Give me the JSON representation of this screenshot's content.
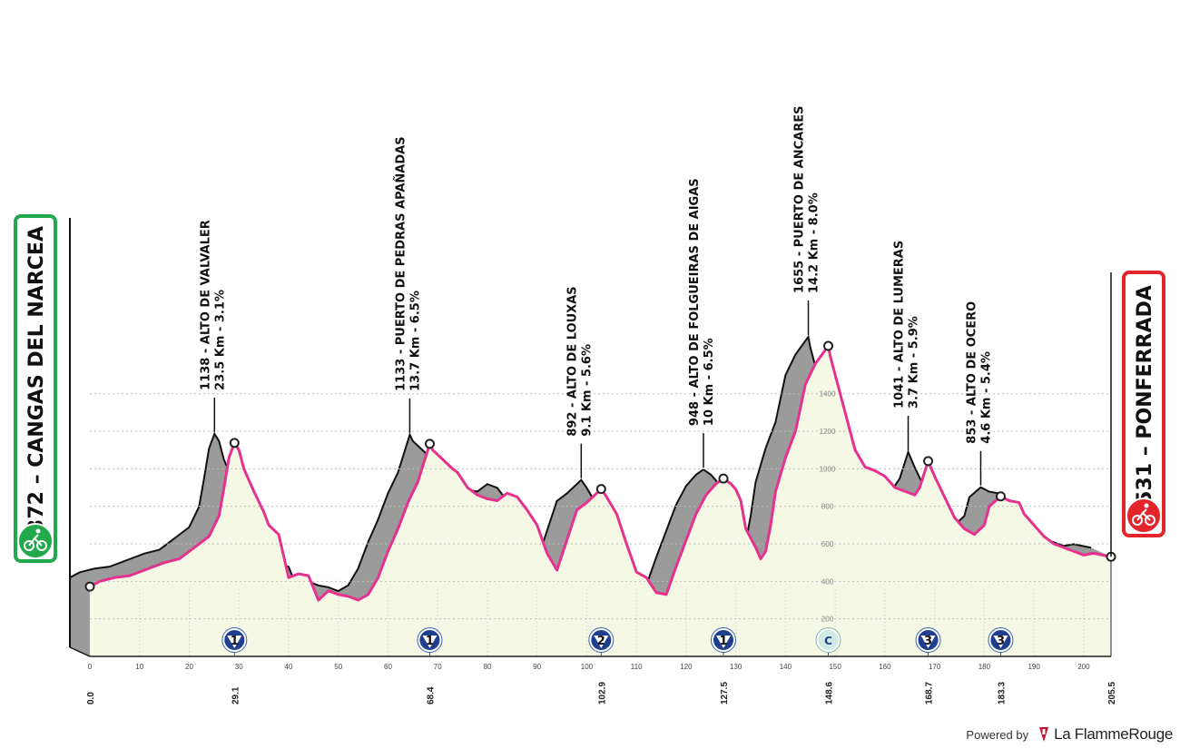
{
  "chart_data": {
    "type": "area",
    "start": {
      "name": "CANGAS DEL NARCEA",
      "altitude": "372",
      "label": "372 – CANGAS DEL NARCEA",
      "color": "#22a94b"
    },
    "finish": {
      "name": "PONFERRADA",
      "altitude": "531",
      "label": "531 – PONFERRADA",
      "color": "#e3252b"
    },
    "xlim": [
      0,
      205.5
    ],
    "ylim": [
      0,
      1700
    ],
    "x_ticks": [
      0,
      10,
      20,
      30,
      40,
      50,
      60,
      70,
      80,
      90,
      100,
      110,
      120,
      130,
      140,
      150,
      160,
      170,
      180,
      190,
      200
    ],
    "y_ticks": [
      200,
      400,
      600,
      800,
      1000,
      1200,
      1400
    ],
    "key_distances": [
      "0.0",
      "29.1",
      "68.4",
      "102.9",
      "127.5",
      "148.6",
      "168.7",
      "183.3",
      "205.5"
    ],
    "profile": {
      "x": [
        0,
        2,
        5,
        8,
        10,
        12,
        15,
        18,
        20,
        22,
        24,
        26,
        27,
        28,
        29.1,
        30,
        31,
        33,
        35,
        36,
        38,
        40,
        42,
        44,
        46,
        48,
        50,
        52,
        54,
        56,
        58,
        60,
        62,
        64,
        66,
        68.4,
        69,
        71,
        73,
        74,
        75,
        76,
        78,
        80,
        82,
        84,
        86,
        88,
        90,
        92,
        94,
        96,
        98,
        100,
        102.9,
        104,
        106,
        108,
        110,
        112,
        114,
        116,
        118,
        120,
        122,
        124,
        126,
        127.5,
        129,
        130,
        131,
        132,
        134,
        135,
        136,
        137,
        138,
        140,
        142,
        144,
        146,
        148.6,
        149,
        150,
        152,
        154,
        156,
        158,
        160,
        162,
        164,
        166,
        167,
        168.7,
        170,
        172,
        174,
        176,
        178,
        180,
        181,
        183.3,
        185,
        187,
        188,
        190,
        192,
        194,
        196,
        198,
        200,
        202,
        205.5
      ],
      "y": [
        372,
        400,
        420,
        430,
        450,
        470,
        500,
        520,
        560,
        600,
        640,
        750,
        900,
        1060,
        1138,
        1100,
        1000,
        880,
        770,
        700,
        650,
        420,
        440,
        430,
        300,
        350,
        330,
        320,
        300,
        330,
        420,
        560,
        680,
        820,
        930,
        1133,
        1100,
        1050,
        1000,
        980,
        940,
        900,
        860,
        840,
        830,
        870,
        850,
        780,
        700,
        550,
        460,
        620,
        780,
        820,
        892,
        850,
        760,
        600,
        450,
        420,
        340,
        330,
        480,
        620,
        760,
        860,
        920,
        948,
        920,
        890,
        830,
        680,
        580,
        520,
        560,
        700,
        880,
        1060,
        1200,
        1450,
        1560,
        1655,
        1600,
        1500,
        1300,
        1100,
        1010,
        990,
        960,
        900,
        880,
        860,
        900,
        1041,
        960,
        850,
        740,
        680,
        650,
        700,
        800,
        853,
        830,
        820,
        760,
        700,
        640,
        600,
        580,
        560,
        540,
        550,
        531
      ]
    },
    "climbs": [
      {
        "km": 29.1,
        "alt": 1138,
        "name": "ALTO DE VALVALER",
        "line1": "1138 - ALTO DE VALVALER",
        "line2": "23.5 Km - 3.1%",
        "category": "1"
      },
      {
        "km": 68.4,
        "alt": 1133,
        "name": "PUERTO DE PEDRAS APAÑADAS",
        "line1": "1133 - PUERTO DE PEDRAS APAÑADAS",
        "line2": "13.7 Km - 6.5%",
        "category": "1"
      },
      {
        "km": 102.9,
        "alt": 892,
        "name": "ALTO DE LOUXAS",
        "line1": "892 - ALTO DE LOUXAS",
        "line2": "9.1 Km - 5.6%",
        "category": "2"
      },
      {
        "km": 127.5,
        "alt": 948,
        "name": "ALTO DE FOLGUEIRAS DE AIGAS",
        "line1": "948 - ALTO DE FOLGUEIRAS DE AIGAS",
        "line2": "10 Km - 6.5%",
        "category": "1"
      },
      {
        "km": 148.6,
        "alt": 1655,
        "name": "PUERTO DE ANCARES",
        "line1": "1655 - PUERTO DE ANCARES",
        "line2": "14.2 Km - 8.0%",
        "category": "C"
      },
      {
        "km": 168.7,
        "alt": 1041,
        "name": "ALTO DE LUMERAS",
        "line1": "1041 - ALTO DE LUMERAS",
        "line2": "3.7 Km - 5.9%",
        "category": "3"
      },
      {
        "km": 183.3,
        "alt": 853,
        "name": "ALTO DE OCERO",
        "line1": "853 - ALTO DE OCERO",
        "line2": "4.6 Km - 5.4%",
        "category": "3"
      }
    ],
    "colors": {
      "route": "#e6318f",
      "fill": "#f6f8e6",
      "side": "#9b9b9b",
      "badge": "#1e3f8f",
      "badge_c": "#cfe9e3"
    },
    "grid": true
  },
  "footer": {
    "powered": "Powered by",
    "brand": "La FlammeRouge"
  }
}
